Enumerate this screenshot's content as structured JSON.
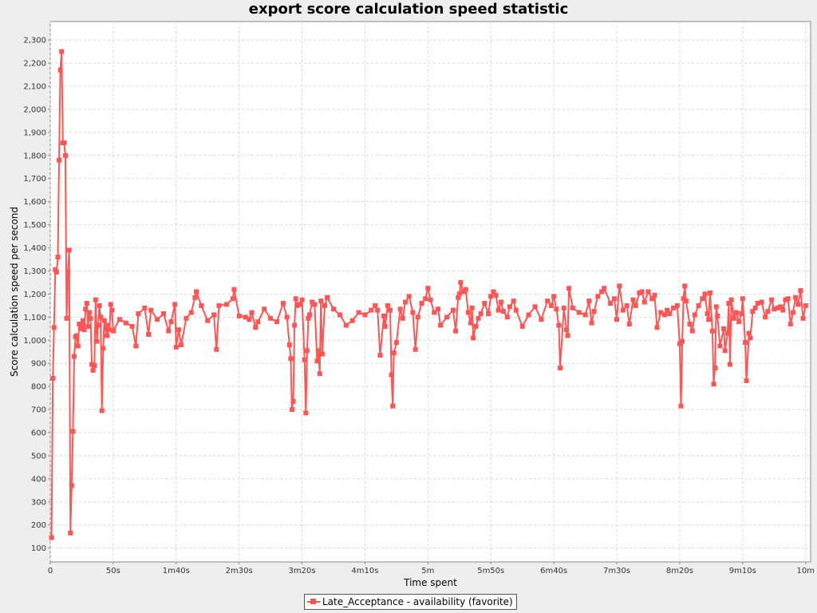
{
  "chart_data": {
    "type": "line",
    "title": "export score calculation speed statistic",
    "xlabel": "Time spent",
    "ylabel": "Score calculation speed per second",
    "xlim": [
      0,
      604
    ],
    "ylim": [
      40,
      2380
    ],
    "grid": true,
    "legend_position": "bottom-center",
    "x_ticks": [
      {
        "value": 0,
        "label": "0"
      },
      {
        "value": 50,
        "label": "50s"
      },
      {
        "value": 100,
        "label": "1m40s"
      },
      {
        "value": 150,
        "label": "2m30s"
      },
      {
        "value": 200,
        "label": "3m20s"
      },
      {
        "value": 250,
        "label": "4m10s"
      },
      {
        "value": 300,
        "label": "5m"
      },
      {
        "value": 350,
        "label": "5m50s"
      },
      {
        "value": 400,
        "label": "6m40s"
      },
      {
        "value": 450,
        "label": "7m30s"
      },
      {
        "value": 500,
        "label": "8m20s"
      },
      {
        "value": 550,
        "label": "9m10s"
      },
      {
        "value": 600,
        "label": "10m"
      }
    ],
    "y_ticks": [
      {
        "value": 100,
        "label": "100"
      },
      {
        "value": 200,
        "label": "200"
      },
      {
        "value": 300,
        "label": "300"
      },
      {
        "value": 400,
        "label": "400"
      },
      {
        "value": 500,
        "label": "500"
      },
      {
        "value": 600,
        "label": "600"
      },
      {
        "value": 700,
        "label": "700"
      },
      {
        "value": 800,
        "label": "800"
      },
      {
        "value": 900,
        "label": "900"
      },
      {
        "value": 1000,
        "label": "1,000"
      },
      {
        "value": 1100,
        "label": "1,100"
      },
      {
        "value": 1200,
        "label": "1,200"
      },
      {
        "value": 1300,
        "label": "1,300"
      },
      {
        "value": 1400,
        "label": "1,400"
      },
      {
        "value": 1500,
        "label": "1,500"
      },
      {
        "value": 1600,
        "label": "1,600"
      },
      {
        "value": 1700,
        "label": "1,700"
      },
      {
        "value": 1800,
        "label": "1,800"
      },
      {
        "value": 1900,
        "label": "1,900"
      },
      {
        "value": 2000,
        "label": "2,000"
      },
      {
        "value": 2100,
        "label": "2,100"
      },
      {
        "value": 2200,
        "label": "2,200"
      },
      {
        "value": 2300,
        "label": "2,300"
      }
    ],
    "series": [
      {
        "name": "Late_Acceptance - availability (favorite)",
        "color": "#ff5555",
        "marker": "square",
        "points": [
          [
            1,
            145
          ],
          [
            2,
            835
          ],
          [
            3,
            1055
          ],
          [
            4,
            1305
          ],
          [
            5,
            1295
          ],
          [
            6,
            1360
          ],
          [
            7,
            1780
          ],
          [
            8,
            2170
          ],
          [
            9,
            2250
          ],
          [
            10,
            1855
          ],
          [
            11,
            1855
          ],
          [
            12,
            1800
          ],
          [
            13,
            1095
          ],
          [
            14,
            1295
          ],
          [
            15,
            1390
          ],
          [
            16,
            165
          ],
          [
            17,
            370
          ],
          [
            18,
            605
          ],
          [
            19,
            930
          ],
          [
            20,
            1015
          ],
          [
            21,
            1020
          ],
          [
            22,
            975
          ],
          [
            23,
            1070
          ],
          [
            24,
            1050
          ],
          [
            25,
            1060
          ],
          [
            26,
            1085
          ],
          [
            27,
            1045
          ],
          [
            28,
            1135
          ],
          [
            29,
            1160
          ],
          [
            30,
            1060
          ],
          [
            31,
            1120
          ],
          [
            32,
            1095
          ],
          [
            33,
            895
          ],
          [
            34,
            870
          ],
          [
            35,
            890
          ],
          [
            36,
            1175
          ],
          [
            37,
            995
          ],
          [
            38,
            1065
          ],
          [
            39,
            1150
          ],
          [
            40,
            1100
          ],
          [
            41,
            695
          ],
          [
            42,
            965
          ],
          [
            43,
            1085
          ],
          [
            44,
            1050
          ],
          [
            45,
            1020
          ],
          [
            46,
            1065
          ],
          [
            47,
            1045
          ],
          [
            48,
            1155
          ],
          [
            49,
            1130
          ],
          [
            50,
            1040
          ],
          [
            55,
            1090
          ],
          [
            60,
            1075
          ],
          [
            65,
            1060
          ],
          [
            68,
            975
          ],
          [
            70,
            1115
          ],
          [
            75,
            1140
          ],
          [
            78,
            1025
          ],
          [
            80,
            1130
          ],
          [
            85,
            1090
          ],
          [
            90,
            1115
          ],
          [
            94,
            1040
          ],
          [
            96,
            1080
          ],
          [
            99,
            1155
          ],
          [
            100,
            970
          ],
          [
            102,
            1045
          ],
          [
            104,
            980
          ],
          [
            108,
            1095
          ],
          [
            112,
            1120
          ],
          [
            115,
            1185
          ],
          [
            116,
            1210
          ],
          [
            120,
            1150
          ],
          [
            125,
            1085
          ],
          [
            130,
            1110
          ],
          [
            132,
            960
          ],
          [
            134,
            1150
          ],
          [
            140,
            1155
          ],
          [
            145,
            1180
          ],
          [
            146,
            1220
          ],
          [
            150,
            1105
          ],
          [
            155,
            1100
          ],
          [
            158,
            1090
          ],
          [
            160,
            1120
          ],
          [
            163,
            1055
          ],
          [
            165,
            1080
          ],
          [
            170,
            1135
          ],
          [
            175,
            1095
          ],
          [
            180,
            1080
          ],
          [
            185,
            1160
          ],
          [
            188,
            1100
          ],
          [
            190,
            980
          ],
          [
            191,
            920
          ],
          [
            192,
            700
          ],
          [
            193,
            735
          ],
          [
            194,
            1065
          ],
          [
            195,
            1180
          ],
          [
            196,
            1150
          ],
          [
            198,
            1155
          ],
          [
            200,
            1175
          ],
          [
            202,
            915
          ],
          [
            203,
            685
          ],
          [
            204,
            955
          ],
          [
            205,
            1095
          ],
          [
            206,
            1110
          ],
          [
            208,
            1165
          ],
          [
            210,
            1155
          ],
          [
            212,
            910
          ],
          [
            213,
            955
          ],
          [
            214,
            855
          ],
          [
            215,
            1170
          ],
          [
            216,
            940
          ],
          [
            218,
            1150
          ],
          [
            220,
            1185
          ],
          [
            225,
            1135
          ],
          [
            230,
            1110
          ],
          [
            235,
            1065
          ],
          [
            240,
            1085
          ],
          [
            245,
            1120
          ],
          [
            250,
            1110
          ],
          [
            255,
            1130
          ],
          [
            258,
            1150
          ],
          [
            260,
            1130
          ],
          [
            262,
            935
          ],
          [
            265,
            1105
          ],
          [
            266,
            1060
          ],
          [
            268,
            1150
          ],
          [
            270,
            1130
          ],
          [
            271,
            850
          ],
          [
            272,
            715
          ],
          [
            273,
            945
          ],
          [
            275,
            990
          ],
          [
            278,
            1135
          ],
          [
            280,
            1095
          ],
          [
            282,
            1165
          ],
          [
            285,
            1190
          ],
          [
            288,
            1120
          ],
          [
            290,
            960
          ],
          [
            292,
            1100
          ],
          [
            295,
            1160
          ],
          [
            298,
            1180
          ],
          [
            300,
            1225
          ],
          [
            302,
            1175
          ],
          [
            305,
            1120
          ],
          [
            308,
            1135
          ],
          [
            310,
            1065
          ],
          [
            315,
            1100
          ],
          [
            320,
            1130
          ],
          [
            322,
            1040
          ],
          [
            324,
            1185
          ],
          [
            325,
            1200
          ],
          [
            326,
            1250
          ],
          [
            328,
            1210
          ],
          [
            330,
            1220
          ],
          [
            332,
            1120
          ],
          [
            334,
            1075
          ],
          [
            335,
            1140
          ],
          [
            336,
            1010
          ],
          [
            338,
            1060
          ],
          [
            340,
            1095
          ],
          [
            342,
            1115
          ],
          [
            345,
            1160
          ],
          [
            348,
            1115
          ],
          [
            350,
            1190
          ],
          [
            352,
            1210
          ],
          [
            354,
            1195
          ],
          [
            356,
            1130
          ],
          [
            358,
            1165
          ],
          [
            360,
            1125
          ],
          [
            363,
            1100
          ],
          [
            365,
            1145
          ],
          [
            368,
            1170
          ],
          [
            370,
            1130
          ],
          [
            375,
            1060
          ],
          [
            380,
            1110
          ],
          [
            385,
            1145
          ],
          [
            390,
            1090
          ],
          [
            395,
            1170
          ],
          [
            398,
            1150
          ],
          [
            400,
            1190
          ],
          [
            402,
            1135
          ],
          [
            404,
            1065
          ],
          [
            405,
            880
          ],
          [
            408,
            1140
          ],
          [
            410,
            1045
          ],
          [
            411,
            1020
          ],
          [
            412,
            1225
          ],
          [
            415,
            1140
          ],
          [
            420,
            1120
          ],
          [
            425,
            1110
          ],
          [
            428,
            1170
          ],
          [
            430,
            1075
          ],
          [
            432,
            1125
          ],
          [
            435,
            1190
          ],
          [
            438,
            1210
          ],
          [
            440,
            1225
          ],
          [
            445,
            1160
          ],
          [
            448,
            1180
          ],
          [
            450,
            1090
          ],
          [
            452,
            1235
          ],
          [
            455,
            1130
          ],
          [
            458,
            1150
          ],
          [
            460,
            1070
          ],
          [
            463,
            1175
          ],
          [
            465,
            1150
          ],
          [
            468,
            1205
          ],
          [
            470,
            1210
          ],
          [
            472,
            1165
          ],
          [
            475,
            1210
          ],
          [
            478,
            1180
          ],
          [
            480,
            1195
          ],
          [
            482,
            1055
          ],
          [
            485,
            1120
          ],
          [
            488,
            1110
          ],
          [
            490,
            1130
          ],
          [
            492,
            1115
          ],
          [
            495,
            1140
          ],
          [
            498,
            1150
          ],
          [
            500,
            985
          ],
          [
            501,
            715
          ],
          [
            502,
            995
          ],
          [
            503,
            1180
          ],
          [
            504,
            1235
          ],
          [
            505,
            1170
          ],
          [
            508,
            1070
          ],
          [
            510,
            1040
          ],
          [
            512,
            1110
          ],
          [
            515,
            1150
          ],
          [
            518,
            1180
          ],
          [
            520,
            1200
          ],
          [
            522,
            1115
          ],
          [
            523,
            1090
          ],
          [
            524,
            1205
          ],
          [
            526,
            1040
          ],
          [
            527,
            810
          ],
          [
            528,
            880
          ],
          [
            529,
            1145
          ],
          [
            530,
            1105
          ],
          [
            532,
            975
          ],
          [
            535,
            1050
          ],
          [
            536,
            955
          ],
          [
            538,
            1030
          ],
          [
            539,
            1160
          ],
          [
            540,
            895
          ],
          [
            541,
            1175
          ],
          [
            543,
            1095
          ],
          [
            545,
            1120
          ],
          [
            547,
            1080
          ],
          [
            549,
            1115
          ],
          [
            550,
            1180
          ],
          [
            552,
            990
          ],
          [
            553,
            825
          ],
          [
            555,
            1030
          ],
          [
            556,
            1010
          ],
          [
            558,
            1125
          ],
          [
            560,
            1140
          ],
          [
            562,
            1160
          ],
          [
            565,
            1165
          ],
          [
            568,
            1100
          ],
          [
            570,
            1125
          ],
          [
            573,
            1175
          ],
          [
            575,
            1135
          ],
          [
            578,
            1140
          ],
          [
            580,
            1145
          ],
          [
            582,
            1130
          ],
          [
            584,
            1175
          ],
          [
            586,
            1180
          ],
          [
            588,
            1070
          ],
          [
            590,
            1120
          ],
          [
            592,
            1185
          ],
          [
            594,
            1155
          ],
          [
            596,
            1215
          ],
          [
            598,
            1095
          ],
          [
            600,
            1150
          ]
        ]
      }
    ]
  }
}
